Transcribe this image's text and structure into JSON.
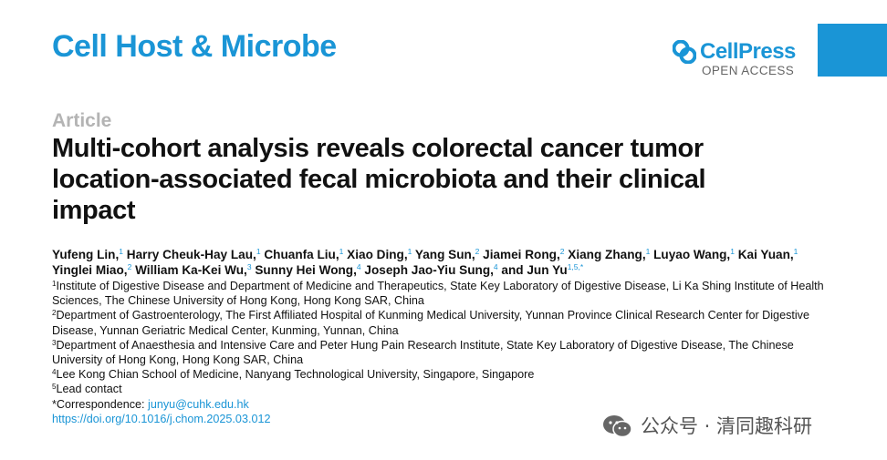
{
  "journal": {
    "name": "Cell Host & Microbe"
  },
  "publisher": {
    "brand": "CellPress",
    "access": "OPEN ACCESS",
    "icon": "cellpress-logo-icon"
  },
  "article": {
    "type": "Article",
    "title": "Multi-cohort analysis reveals colorectal cancer tumor location-associated fecal microbiota and their clinical impact"
  },
  "authors": [
    {
      "name": "Yufeng Lin,",
      "aff": "1"
    },
    {
      "name": "Harry Cheuk-Hay Lau,",
      "aff": "1"
    },
    {
      "name": "Chuanfa Liu,",
      "aff": "1"
    },
    {
      "name": "Xiao Ding,",
      "aff": "1"
    },
    {
      "name": "Yang Sun,",
      "aff": "2"
    },
    {
      "name": "Jiamei Rong,",
      "aff": "2"
    },
    {
      "name": "Xiang Zhang,",
      "aff": "1"
    },
    {
      "name": "Luyao Wang,",
      "aff": "1"
    },
    {
      "name": "Kai Yuan,",
      "aff": "1"
    },
    {
      "name": "Yinglei Miao,",
      "aff": "2"
    },
    {
      "name": "William Ka-Kei Wu,",
      "aff": "3"
    },
    {
      "name": "Sunny Hei Wong,",
      "aff": "4"
    },
    {
      "name": "Joseph Jao-Yiu Sung,",
      "aff": "4"
    },
    {
      "name": "and Jun Yu",
      "aff": "1,5,*"
    }
  ],
  "affiliations": [
    {
      "num": "1",
      "text": "Institute of Digestive Disease and Department of Medicine and Therapeutics, State Key Laboratory of Digestive Disease, Li Ka Shing Institute of Health Sciences, The Chinese University of Hong Kong, Hong Kong SAR, China"
    },
    {
      "num": "2",
      "text": "Department of Gastroenterology, The First Affiliated Hospital of Kunming Medical University, Yunnan Province Clinical Research Center for Digestive Disease, Yunnan Geriatric Medical Center, Kunming, Yunnan, China"
    },
    {
      "num": "3",
      "text": "Department of Anaesthesia and Intensive Care and Peter Hung Pain Research Institute, State Key Laboratory of Digestive Disease, The Chinese University of Hong Kong, Hong Kong SAR, China"
    },
    {
      "num": "4",
      "text": "Lee Kong Chian School of Medicine, Nanyang Technological University, Singapore, Singapore"
    },
    {
      "num": "5",
      "text": "Lead contact"
    }
  ],
  "correspondence": {
    "label": "*Correspondence: ",
    "email": "junyu@cuhk.edu.hk"
  },
  "doi": "https://doi.org/10.1016/j.chom.2025.03.012",
  "watermark": {
    "text": "公众号 · 清同趣科研",
    "icon": "wechat-icon"
  },
  "colors": {
    "accent": "#1a95d6",
    "article_type": "#b4b4b4"
  }
}
